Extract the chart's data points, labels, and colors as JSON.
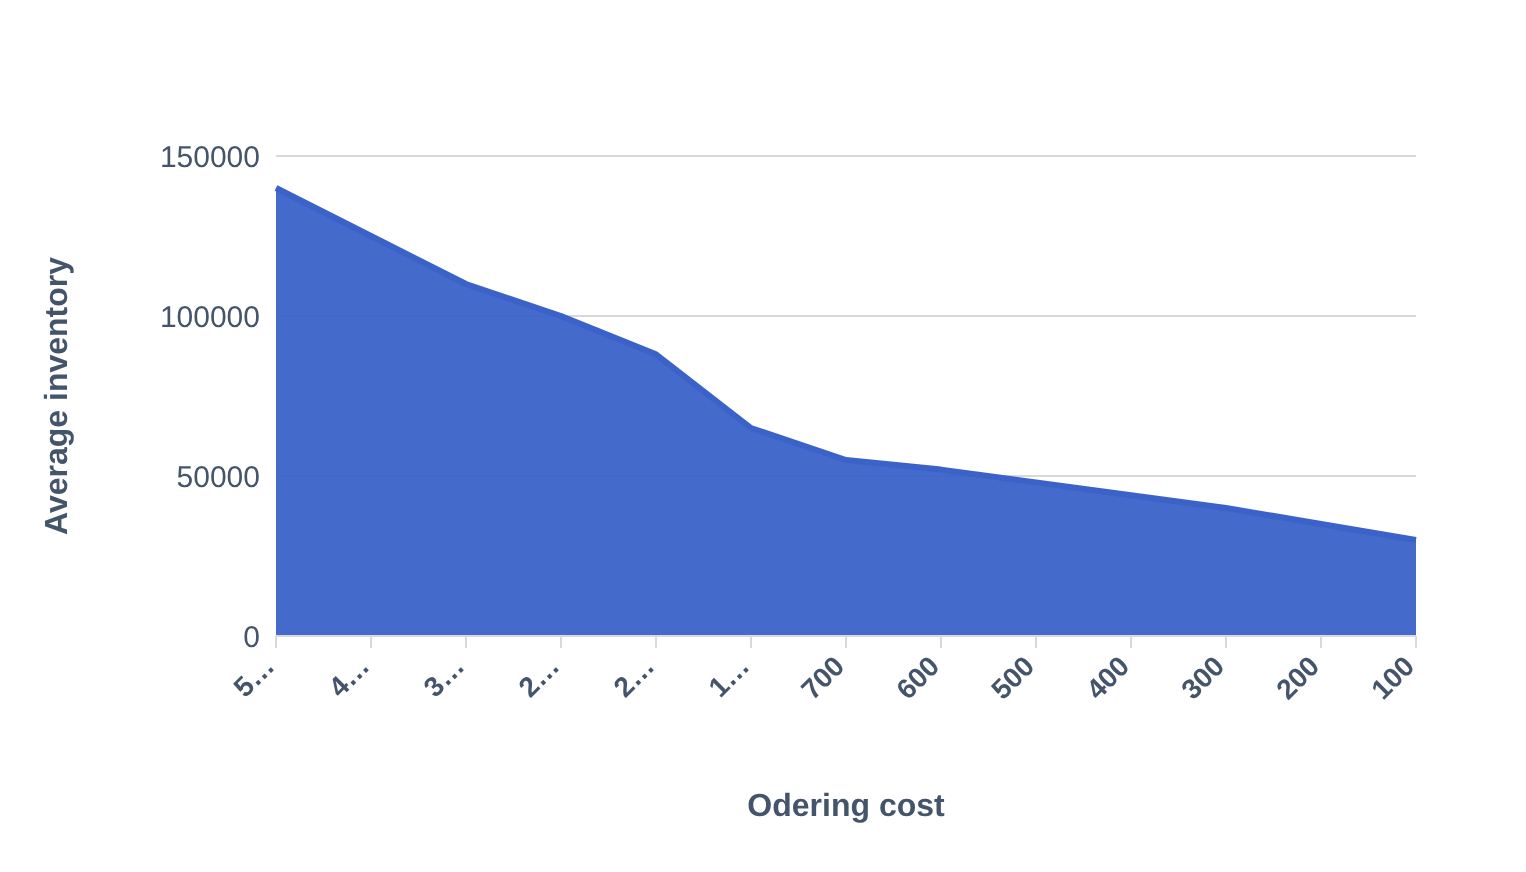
{
  "chart_data": {
    "type": "area",
    "xlabel": "Odering cost",
    "ylabel": "Average inventory",
    "categories": [
      "5…",
      "4…",
      "3…",
      "2…",
      "2…",
      "1…",
      "700",
      "600",
      "500",
      "400",
      "300",
      "200",
      "100"
    ],
    "values": [
      140000,
      125000,
      110000,
      100000,
      88000,
      65000,
      55000,
      52000,
      48000,
      44000,
      40000,
      35000,
      30000
    ],
    "color": "#3a62c9",
    "ylim": [
      0,
      150000
    ],
    "yticks": [
      0,
      50000,
      100000,
      150000
    ],
    "grid": "y"
  }
}
